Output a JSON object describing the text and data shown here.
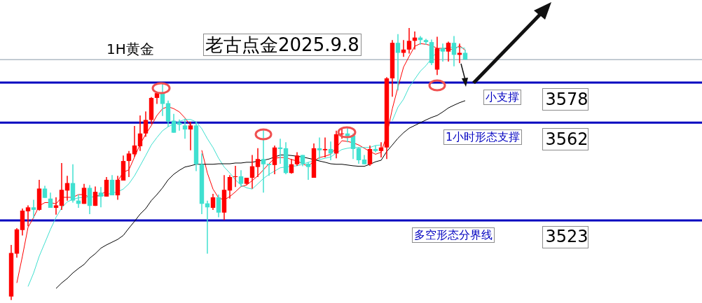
{
  "chart_data": {
    "type": "candlestick",
    "title": "1H黄金",
    "subtitle": "老古点金2025.9.8",
    "categories": [
      null,
      null,
      null,
      null,
      null,
      null,
      null,
      null,
      null,
      null,
      null,
      null,
      null,
      null,
      null,
      null,
      null,
      null,
      null,
      null,
      null,
      null,
      null,
      null,
      null,
      null,
      null,
      null,
      null,
      null,
      null,
      null,
      null,
      null,
      null,
      null,
      null,
      null,
      null,
      null,
      null,
      null,
      null,
      null,
      null,
      null,
      null,
      null,
      null,
      null,
      null,
      null,
      null,
      null,
      null,
      null,
      null,
      null,
      null,
      null,
      null,
      null,
      null,
      null,
      null,
      null,
      null,
      null,
      null,
      null,
      null,
      null,
      null,
      null,
      null,
      null,
      null,
      null,
      null,
      null,
      null,
      null
    ],
    "ohlc": [
      [
        3492.6,
        3513.2,
        3491.2,
        3510.0
      ],
      [
        3509.7,
        3519.9,
        3508.1,
        3519.4
      ],
      [
        3519.1,
        3527.7,
        3517.0,
        3526.9
      ],
      [
        3526.6,
        3529.0,
        3520.7,
        3528.2
      ],
      [
        3528.2,
        3531.2,
        3523.9,
        3527.2
      ],
      [
        3527.2,
        3539.2,
        3526.9,
        3535.7
      ],
      [
        3535.7,
        3536.8,
        3532.0,
        3532.0
      ],
      [
        3531.7,
        3534.1,
        3528.0,
        3528.0
      ],
      [
        3528.0,
        3532.2,
        3525.3,
        3529.0
      ],
      [
        3528.8,
        3545.9,
        3527.2,
        3535.2
      ],
      [
        3534.9,
        3540.8,
        3530.9,
        3537.9
      ],
      [
        3537.9,
        3545.4,
        3530.1,
        3530.9
      ],
      [
        3530.9,
        3533.3,
        3528.0,
        3529.6
      ],
      [
        3529.6,
        3537.6,
        3529.6,
        3536.0
      ],
      [
        3536.0,
        3537.1,
        3525.5,
        3528.8
      ],
      [
        3528.8,
        3536.5,
        3528.8,
        3534.4
      ],
      [
        3534.1,
        3536.3,
        3528.2,
        3532.5
      ],
      [
        3532.5,
        3540.3,
        3532.5,
        3539.2
      ],
      [
        3539.2,
        3541.1,
        3533.0,
        3533.0
      ],
      [
        3533.0,
        3540.8,
        3531.2,
        3539.2
      ],
      [
        3538.9,
        3548.9,
        3538.9,
        3546.7
      ],
      [
        3546.7,
        3550.7,
        3540.3,
        3549.7
      ],
      [
        3549.4,
        3560.7,
        3548.3,
        3552.9
      ],
      [
        3552.6,
        3564.9,
        3550.7,
        3557.7
      ],
      [
        3557.7,
        3566.5,
        3556.4,
        3563.1
      ],
      [
        3563.1,
        3572.2,
        3561.5,
        3571.9
      ],
      [
        3571.9,
        3574.3,
        3569.5,
        3573.8
      ],
      [
        3573.8,
        3577.8,
        3564.7,
        3569.5
      ],
      [
        3569.8,
        3570.8,
        3560.4,
        3562.5
      ],
      [
        3562.8,
        3565.5,
        3558.0,
        3558.0
      ],
      [
        3562.0,
        3563.3,
        3558.8,
        3561.2
      ],
      [
        3560.9,
        3563.6,
        3555.6,
        3559.3
      ],
      [
        3559.3,
        3562.3,
        3551.0,
        3560.9
      ],
      [
        3560.9,
        3562.3,
        3542.7,
        3545.4
      ],
      [
        3545.4,
        3549.7,
        3525.5,
        3529.6
      ],
      [
        3529.8,
        3530.9,
        3509.7,
        3528.2
      ],
      [
        3528.0,
        3533.6,
        3527.2,
        3532.2
      ],
      [
        3532.2,
        3533.3,
        3524.2,
        3526.1
      ],
      [
        3526.1,
        3541.1,
        3523.1,
        3535.2
      ],
      [
        3534.9,
        3541.1,
        3531.7,
        3540.3
      ],
      [
        3540.3,
        3544.8,
        3536.3,
        3540.6
      ],
      [
        3540.6,
        3543.0,
        3536.3,
        3537.6
      ],
      [
        3537.6,
        3540.0,
        3537.3,
        3540.0
      ],
      [
        3540.0,
        3549.1,
        3535.7,
        3544.6
      ],
      [
        3544.3,
        3551.8,
        3540.3,
        3547.5
      ],
      [
        3547.5,
        3559.0,
        3534.1,
        3545.4
      ],
      [
        3545.6,
        3545.6,
        3540.8,
        3545.1
      ],
      [
        3545.1,
        3552.9,
        3541.4,
        3552.1
      ],
      [
        3552.1,
        3555.6,
        3545.6,
        3551.5
      ],
      [
        3551.8,
        3554.2,
        3541.4,
        3541.9
      ],
      [
        3541.9,
        3547.5,
        3541.6,
        3545.4
      ],
      [
        3545.4,
        3550.2,
        3544.8,
        3548.9
      ],
      [
        3549.1,
        3549.1,
        3544.6,
        3545.6
      ],
      [
        3545.6,
        3546.2,
        3539.2,
        3544.3
      ],
      [
        3540.0,
        3553.7,
        3540.0,
        3551.8
      ],
      [
        3551.8,
        3556.1,
        3547.5,
        3551.0
      ],
      [
        3551.0,
        3556.1,
        3548.1,
        3551.5
      ],
      [
        3551.5,
        3554.5,
        3547.0,
        3549.7
      ],
      [
        3549.7,
        3558.8,
        3547.8,
        3557.4
      ],
      [
        3557.4,
        3560.1,
        3555.6,
        3557.7
      ],
      [
        3557.7,
        3560.4,
        3554.2,
        3556.6
      ],
      [
        3556.9,
        3557.7,
        3547.5,
        3551.5
      ],
      [
        3551.8,
        3552.1,
        3545.6,
        3547.0
      ],
      [
        3547.3,
        3549.1,
        3545.4,
        3545.4
      ],
      [
        3545.4,
        3552.9,
        3544.8,
        3551.5
      ],
      [
        3551.5,
        3552.9,
        3550.2,
        3550.7
      ],
      [
        3550.7,
        3554.2,
        3548.1,
        3552.1
      ],
      [
        3552.1,
        3580.2,
        3547.5,
        3579.7
      ],
      [
        3579.7,
        3595.0,
        3572.4,
        3593.9
      ],
      [
        3593.9,
        3597.4,
        3574.9,
        3589.9
      ],
      [
        3589.9,
        3595.0,
        3588.3,
        3591.2
      ],
      [
        3591.2,
        3599.8,
        3589.6,
        3594.7
      ],
      [
        3594.7,
        3598.4,
        3591.2,
        3596.0
      ],
      [
        3596.0,
        3596.6,
        3593.1,
        3595.0
      ],
      [
        3595.0,
        3595.5,
        3593.1,
        3594.2
      ],
      [
        3594.2,
        3595.2,
        3585.0,
        3585.8
      ],
      [
        3583.2,
        3596.3,
        3581.0,
        3591.7
      ],
      [
        3591.7,
        3593.6,
        3586.4,
        3590.4
      ],
      [
        3590.4,
        3594.4,
        3586.4,
        3593.9
      ],
      [
        3593.9,
        3596.6,
        3584.5,
        3589.1
      ],
      [
        3589.1,
        3593.6,
        3585.8,
        3589.9
      ],
      [
        3589.9,
        3591.2,
        3587.2,
        3587.2
      ]
    ],
    "colors": [
      "#ff0000",
      "#ff0000",
      "#ff0000",
      "#ff0000",
      "#40e0d0",
      "#ff0000",
      "#40e0d0",
      "#40e0d0",
      "#ff0000",
      "#ff0000",
      "#ff0000",
      "#40e0d0",
      "#40e0d0",
      "#ff0000",
      "#40e0d0",
      "#ff0000",
      "#40e0d0",
      "#ff0000",
      "#40e0d0",
      "#ff0000",
      "#ff0000",
      "#ff0000",
      "#ff0000",
      "#ff0000",
      "#ff0000",
      "#ff0000",
      "#ff0000",
      "#40e0d0",
      "#40e0d0",
      "#40e0d0",
      "#40e0d0",
      "#40e0d0",
      "#ff0000",
      "#40e0d0",
      "#40e0d0",
      "#40e0d0",
      "#ff0000",
      "#40e0d0",
      "#ff0000",
      "#ff0000",
      "#ff0000",
      "#40e0d0",
      "#ff0000",
      "#ff0000",
      "#ff0000",
      "#40e0d0",
      "#40e0d0",
      "#ff0000",
      "#40e0d0",
      "#40e0d0",
      "#ff0000",
      "#ff0000",
      "#40e0d0",
      "#40e0d0",
      "#ff0000",
      "#40e0d0",
      "#ff0000",
      "#40e0d0",
      "#ff0000",
      "#ff0000",
      "#40e0d0",
      "#40e0d0",
      "#40e0d0",
      "#40e0d0",
      "#ff0000",
      "#40e0d0",
      "#ff0000",
      "#ff0000",
      "#ff0000",
      "#40e0d0",
      "#ff0000",
      "#ff0000",
      "#ff0000",
      "#40e0d0",
      "#40e0d0",
      "#40e0d0",
      "#ff0000",
      "#40e0d0",
      "#ff0000",
      "#40e0d0",
      "#ff0000",
      "#40e0d0"
    ],
    "series": [
      {
        "type": "line",
        "color": "#ff0000",
        "values": [
          null,
          3498.0,
          3508.7,
          3520.2,
          3524.2,
          3528.8,
          3530.1,
          3530.1,
          3529.6,
          3532.2,
          3532.2,
          3532.2,
          3533.3,
          3533.3,
          3532.2,
          3532.5,
          3533.3,
          3534.7,
          null,
          3538.7,
          3542.2,
          3543.2,
          3548.3,
          3553.4,
          3557.4,
          3560.9,
          3564.9,
          3567.6,
          3568.4,
          3567.6,
          3566.3,
          3563.9,
          3560.9,
          null,
          3551.0,
          3541.9,
          3535.5,
          3532.0,
          3531.2,
          3532.5,
          3534.4,
          3536.5,
          3537.1,
          3538.9,
          3540.8,
          3543.2,
          3545.6,
          3547.8,
          3548.1,
          3548.1,
          3547.3,
          3546.7,
          3545.6,
          3544.6,
          3546.7,
          3548.1,
          3548.6,
          3549.4,
          3552.1,
          3554.8,
          3554.5,
          3554.0,
          3553.1,
          3551.8,
          3550.5,
          3549.4,
          3550.2,
          3556.9,
          3567.6,
          3576.2,
          3584.2,
          3588.5,
          3592.5,
          3593.6,
          3593.3,
          3592.8,
          3591.7,
          3591.7,
          3591.5,
          3591.2,
          3592.8,
          3590.9
        ]
      },
      {
        "type": "line",
        "color": "#40e0d0",
        "values": [
          null,
          null,
          null,
          3496.6,
          3502.0,
          3508.7,
          3514.0,
          3519.4,
          3524.2,
          3528.0,
          3530.4,
          3531.4,
          3532.0,
          3532.2,
          3532.2,
          3532.5,
          3532.8,
          3533.3,
          3533.9,
          3534.4,
          3535.5,
          3537.6,
          3540.8,
          3544.8,
          3548.9,
          3553.1,
          3556.1,
          3558.8,
          3560.4,
          3561.5,
          3562.5,
          3563.3,
          3563.3,
          3562.3,
          3559.6,
          3555.6,
          3552.1,
          3547.8,
          3544.3,
          3541.9,
          3539.2,
          3537.1,
          3536.0,
          3535.5,
          3537.6,
          3539.7,
          3541.4,
          3542.7,
          3544.0,
          3544.3,
          3544.6,
          3544.8,
          3545.4,
          3546.2,
          3546.7,
          3547.3,
          3547.8,
          3548.3,
          3549.9,
          3551.3,
          3551.8,
          3552.1,
          3552.1,
          3552.1,
          3552.1,
          3552.9,
          3553.1,
          null,
          3562.8,
          3568.2,
          3571.4,
          3576.2,
          3579.4,
          3582.6,
          3584.8,
          3587.7,
          3590.4,
          3591.7,
          3592.0,
          3592.3,
          3592.0,
          3591.7
        ]
      },
      {
        "type": "line",
        "color": "#000000",
        "values": [
          null,
          null,
          null,
          null,
          null,
          null,
          null,
          null,
          3495.8,
          3498.0,
          3499.8,
          3502.0,
          3503.8,
          3505.4,
          3507.9,
          3509.7,
          3511.9,
          3513.2,
          3514.3,
          3515.4,
          3517.0,
          3519.9,
          3522.6,
          3525.5,
          3527.7,
          3530.9,
          3533.3,
          3536.0,
          3539.2,
          3541.4,
          3543.0,
          3544.3,
          3544.8,
          3545.4,
          3545.4,
          3545.4,
          3545.4,
          3545.6,
          3545.6,
          3545.6,
          3545.9,
          3545.9,
          3546.2,
          3546.2,
          3546.7,
          3547.0,
          3547.5,
          3548.3,
          3549.1,
          3549.1,
          3548.9,
          3548.6,
          3548.3,
          3547.8,
          3547.3,
          3546.7,
          3546.2,
          3545.6,
          3545.4,
          3545.4,
          3545.1,
          3544.8,
          3544.6,
          3544.6,
          3545.4,
          3546.4,
          3547.0,
          3550.5,
          3553.1,
          3555.8,
          3558.0,
          3559.8,
          3560.9,
          3562.0,
          3563.1,
          3564.1,
          3564.9,
          3566.3,
          3567.9,
          3569.0,
          3570.0,
          3570.8
        ]
      }
    ],
    "ylim": [
      3490,
      3611
    ],
    "yticks": [
      3523,
      3562,
      3578
    ],
    "tick_labels": "y",
    "ref_lines": [
      {
        "axis": "y",
        "value": 3578,
        "label": "小支撑",
        "color": "#0000c0"
      },
      {
        "axis": "y",
        "value": 3562,
        "label": "1小时形态支撑",
        "color": "#0000c0"
      },
      {
        "axis": "y",
        "value": 3523,
        "label": "多空形态分界线",
        "color": "#0000c0"
      },
      {
        "axis": "y",
        "value": 3587.2,
        "color": "#8898a8"
      }
    ]
  }
}
